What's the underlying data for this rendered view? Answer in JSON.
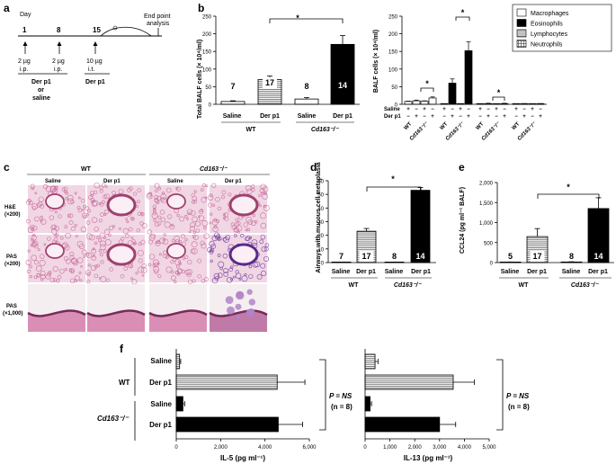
{
  "panel_labels": {
    "a": "a",
    "b": "b",
    "c": "c",
    "d": "d",
    "e": "e",
    "f": "f"
  },
  "timeline": {
    "end_point": "End point",
    "analysis": "analysis",
    "day_label": "Day",
    "days": [
      "1",
      "8",
      "15"
    ],
    "doses": [
      {
        "amount": "2 µg",
        "route": "i.p."
      },
      {
        "amount": "2 µg",
        "route": "i.p."
      },
      {
        "amount": "10 µg",
        "route": "i.t."
      }
    ],
    "treatment_1": "Der p1",
    "treatment_or": "or",
    "treatment_2": "saline",
    "treatment_3": "Der p1"
  },
  "micrograph": {
    "group_wt": "WT",
    "group_ko": "Cd163⁻/⁻",
    "col_labels": [
      "Saline",
      "Der p1",
      "Saline",
      "Der p1"
    ],
    "rows": [
      {
        "stain": "H&E",
        "mag": "(×200)"
      },
      {
        "stain": "PAS",
        "mag": "(×200)"
      },
      {
        "stain": "PAS",
        "mag": "(×1,000)"
      }
    ]
  },
  "chart_data": [
    {
      "id": "b1",
      "type": "bar",
      "ylabel": "Total BALF cells (× 10⁴/ml)",
      "ylim": [
        0,
        250
      ],
      "yticks": [
        "0",
        "50",
        "100",
        "150",
        "200",
        "250"
      ],
      "categories": [
        "Saline",
        "Der p1",
        "Saline",
        "Der p1"
      ],
      "groups": [
        "WT",
        "Cd163⁻/⁻"
      ],
      "values": [
        8,
        70,
        15,
        170
      ],
      "errors": [
        2,
        10,
        4,
        25
      ],
      "n": [
        "7",
        "17",
        "8",
        "14"
      ],
      "significance": "*"
    },
    {
      "id": "b2",
      "type": "bar",
      "ylabel": "BALF cells (× 10⁴/ml)",
      "ylim": [
        0,
        250
      ],
      "yticks": [
        "0",
        "50",
        "100",
        "150",
        "200",
        "250"
      ],
      "legend": [
        "Macrophages",
        "Eosinophils",
        "Lymphocytes",
        "Neutrophils"
      ],
      "legend_position": "top-right",
      "row_labels": [
        "Saline",
        "Der p1"
      ],
      "signs_saline": [
        "+",
        "−",
        "+",
        "−"
      ],
      "signs_derp1": [
        "−",
        "+",
        "−",
        "+"
      ],
      "genotype_labels": [
        "WT",
        "Cd163⁻/⁻",
        "WT",
        "Cd163⁻/⁻"
      ],
      "series": [
        {
          "name": "Macrophages",
          "values": [
            8,
            10,
            9,
            18
          ]
        },
        {
          "name": "Eosinophils",
          "values": [
            0,
            60,
            0,
            152
          ]
        },
        {
          "name": "Lymphocytes",
          "values": [
            0,
            2,
            1,
            2
          ]
        },
        {
          "name": "Neutrophils",
          "values": [
            0,
            1,
            0,
            1
          ]
        }
      ],
      "errors": [
        [
          1,
          2,
          1,
          3
        ],
        [
          0,
          12,
          0,
          25
        ],
        [
          0,
          1,
          0,
          1
        ],
        [
          0,
          1,
          0,
          1
        ]
      ],
      "significance": [
        "*",
        "*",
        "*"
      ]
    },
    {
      "id": "d",
      "type": "bar",
      "ylabel": "Airways with mucous cell metaplasia",
      "ylim": [
        0,
        60
      ],
      "yticks": [
        "0",
        "10",
        "20",
        "30",
        "40",
        "50",
        "60"
      ],
      "categories": [
        "Saline",
        "Der p1",
        "Saline",
        "Der p1"
      ],
      "groups": [
        "WT",
        "Cd163⁻/⁻"
      ],
      "values": [
        0,
        23,
        0,
        53
      ],
      "errors": [
        0,
        2,
        0,
        2
      ],
      "n": [
        "7",
        "17",
        "8",
        "14"
      ],
      "significance": "*"
    },
    {
      "id": "e",
      "type": "bar",
      "ylabel": "CCL24 (pg ml⁻¹ BALF)",
      "ylim": [
        0,
        2000
      ],
      "yticks": [
        "0",
        "500",
        "1,000",
        "1,500",
        "2,000"
      ],
      "categories": [
        "Saline",
        "Der p1",
        "Saline",
        "Der p1"
      ],
      "groups": [
        "WT",
        "Cd163⁻/⁻"
      ],
      "values": [
        10,
        650,
        15,
        1350
      ],
      "errors": [
        5,
        200,
        5,
        270
      ],
      "n": [
        "5",
        "17",
        "8",
        "14"
      ],
      "significance": "*"
    },
    {
      "id": "f1",
      "type": "bar",
      "orientation": "horizontal",
      "xlabel": "IL-5 (pg ml⁻¹)",
      "xlim": [
        0,
        6000
      ],
      "xticks": [
        "0",
        "2,000",
        "4,000",
        "6,000"
      ],
      "categories": [
        "Saline",
        "Der p1",
        "Saline",
        "Der p1"
      ],
      "groups": [
        "WT",
        "Cd163⁻/⁻"
      ],
      "values": [
        150,
        4550,
        300,
        4600
      ],
      "errors": [
        50,
        1250,
        80,
        1100
      ],
      "annotation": "P = NS",
      "annotation_n": "(n = 8)"
    },
    {
      "id": "f2",
      "type": "bar",
      "orientation": "horizontal",
      "xlabel": "IL-13 (pg ml⁻¹)",
      "xlim": [
        0,
        5000
      ],
      "xticks": [
        "0",
        "1,000",
        "2,000",
        "3,000",
        "4,000",
        "5,000"
      ],
      "categories": [
        "Saline",
        "Der p1",
        "Saline",
        "Der p1"
      ],
      "values": [
        400,
        3550,
        200,
        3000
      ],
      "errors": [
        120,
        850,
        60,
        650
      ],
      "annotation": "P = NS",
      "annotation_n": "(n = 8)"
    }
  ],
  "colors": {
    "ko": "#000000",
    "wt_fill": "#ffffff",
    "stripe": "#777777",
    "tissue": "#e8b8d0",
    "tissue_dark": "#a04070"
  }
}
